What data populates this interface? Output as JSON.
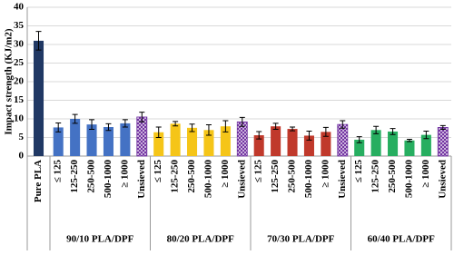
{
  "chart_data": {
    "type": "bar",
    "y_label": "Impact strength (KJ/m2)",
    "ylim": [
      0,
      40
    ],
    "yticks": [
      0,
      5,
      10,
      15,
      20,
      25,
      30,
      35,
      40
    ],
    "grid": true,
    "reference": {
      "category": "Pure PLA",
      "value": 31,
      "error": 2.5,
      "color": "#203864"
    },
    "groups": [
      {
        "label": "90/10 PLA/DPF",
        "color": "#4472c4",
        "categories": [
          "≤ 125",
          "125-250",
          "250-500",
          "500-1000",
          "≥ 1000",
          "Unsieved"
        ],
        "values": [
          7.7,
          10,
          8.5,
          7.8,
          8.8,
          10.5
        ],
        "errors": [
          1.2,
          1.2,
          1.3,
          0.9,
          1,
          1.3
        ],
        "hatched": [
          false,
          false,
          false,
          false,
          false,
          true
        ]
      },
      {
        "label": "80/20 PLA/DPF",
        "color": "#f5c518",
        "categories": [
          "≤ 125",
          "125-250",
          "250-500",
          "500-1000",
          "≥ 1000",
          "Unsieved"
        ],
        "values": [
          6.4,
          8.7,
          7.6,
          7,
          8,
          9.2
        ],
        "errors": [
          1.4,
          0.6,
          1,
          1.4,
          1.5,
          1.2
        ],
        "hatched": [
          false,
          false,
          false,
          false,
          false,
          true
        ]
      },
      {
        "label": "70/30 PLA/DPF",
        "color": "#c0392b",
        "categories": [
          "≤ 125",
          "125-250",
          "250-500",
          "500-1000",
          "≥ 1000",
          "Unsieved"
        ],
        "values": [
          5.6,
          8,
          7.3,
          5.5,
          6.5,
          8.5
        ],
        "errors": [
          1,
          0.8,
          0.5,
          1.2,
          1.2,
          1
        ],
        "hatched": [
          false,
          false,
          false,
          false,
          false,
          true
        ]
      },
      {
        "label": "60/40 PLA/DPF",
        "color": "#27ae60",
        "categories": [
          "≤ 125",
          "125-250",
          "250-500",
          "500-1000",
          "≥ 1000",
          "Unsieved"
        ],
        "values": [
          4.4,
          7,
          6.6,
          4.2,
          5.7,
          7.7
        ],
        "errors": [
          0.8,
          1,
          0.8,
          0.3,
          1,
          0.5
        ],
        "hatched": [
          false,
          false,
          false,
          false,
          false,
          true
        ]
      }
    ]
  }
}
